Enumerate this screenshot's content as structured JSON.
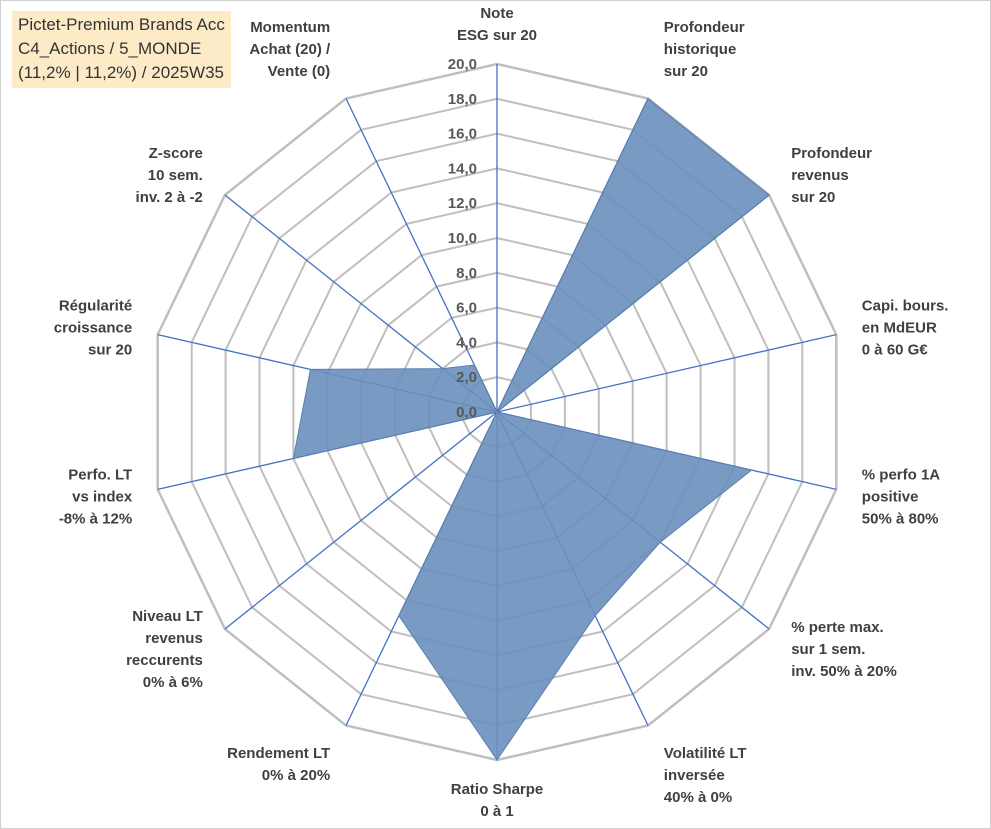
{
  "title": {
    "line1": "Pictet-Premium Brands Acc",
    "line2": "C4_Actions / 5_MONDE",
    "line3": "(11,2% | 11,2%) / 2025W35"
  },
  "chart_data": {
    "type": "radar",
    "rmin": 0,
    "rmax": 20,
    "tick_step": 2,
    "tick_labels": [
      "0,0",
      "2,0",
      "4,0",
      "6,0",
      "8,0",
      "10,0",
      "12,0",
      "14,0",
      "16,0",
      "18,0",
      "20,0"
    ],
    "grid": true,
    "fill_color": "#6a8fbc",
    "line_color": "#4472c4",
    "grid_color": "#bfbfbf",
    "categories": [
      {
        "label": [
          "Note",
          "ESG sur 20"
        ],
        "value": 0
      },
      {
        "label": [
          "Profondeur",
          "historique",
          "sur 20"
        ],
        "value": 20
      },
      {
        "label": [
          "Profondeur",
          "revenus",
          "sur 20"
        ],
        "value": 20
      },
      {
        "label": [
          "Capi. bours.",
          "en MdEUR",
          "0 à 60 G€"
        ],
        "value": 0
      },
      {
        "label": [
          "% perfo 1A",
          "positive",
          "50% à 80%"
        ],
        "value": 15
      },
      {
        "label": [
          "% perte max.",
          "sur 1 sem.",
          "inv. 50% à 20%"
        ],
        "value": 12
      },
      {
        "label": [
          "Volatilité LT",
          "inversée",
          "40% à 0%"
        ],
        "value": 13
      },
      {
        "label": [
          "Ratio Sharpe",
          "0 à 1"
        ],
        "value": 20
      },
      {
        "label": [
          "Rendement LT",
          "0% à 20%"
        ],
        "value": 13
      },
      {
        "label": [
          "Niveau LT",
          "revenus",
          "reccurents",
          "0% à 6%"
        ],
        "value": 0
      },
      {
        "label": [
          "Perfo. LT",
          "vs index",
          "-8% à 12%"
        ],
        "value": 12
      },
      {
        "label": [
          "Régularité",
          "croissance",
          "sur 20"
        ],
        "value": 11
      },
      {
        "label": [
          "Z-score",
          "10 sem.",
          "inv. 2 à -2"
        ],
        "value": 4
      },
      {
        "label": [
          "Momentum",
          "Achat (20) /",
          "Vente (0)"
        ],
        "value": 3
      }
    ]
  }
}
